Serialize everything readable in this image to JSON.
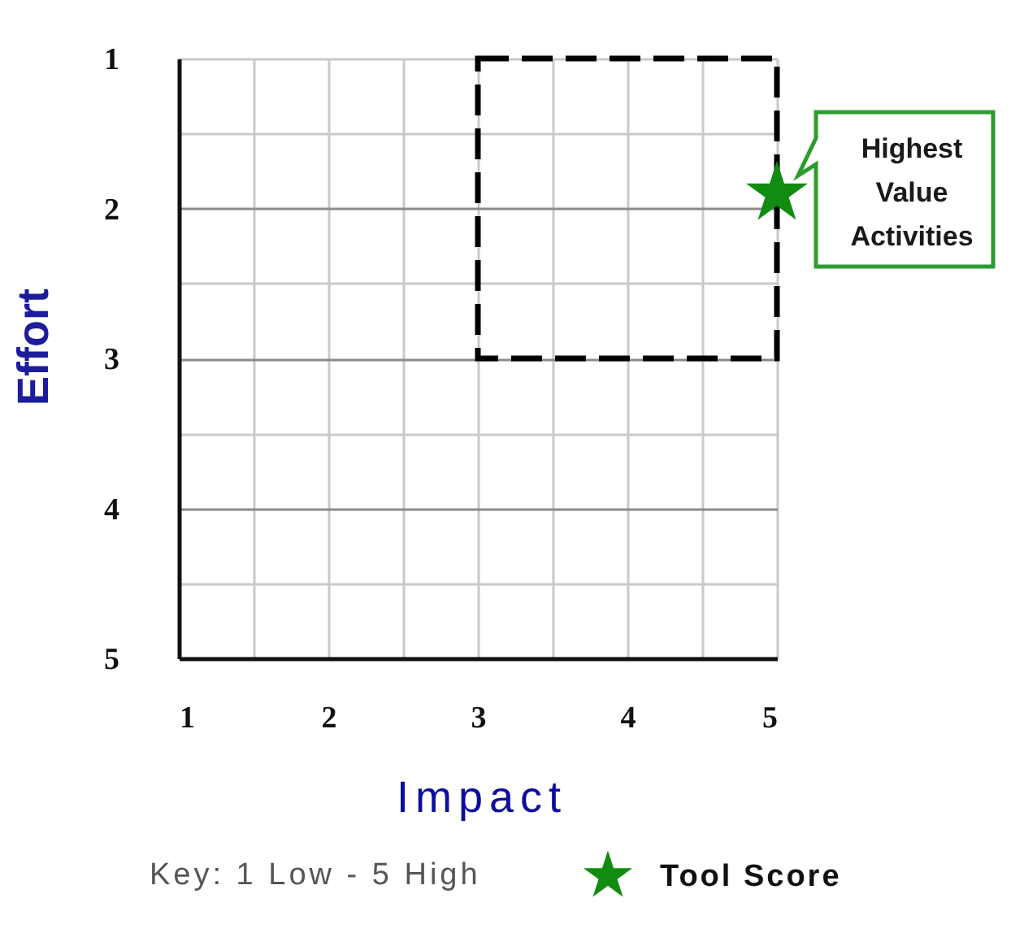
{
  "chart_data": {
    "type": "scatter",
    "xlabel": "Impact",
    "ylabel": "Effort",
    "xlim": [
      1,
      5
    ],
    "ylim": [
      5,
      1
    ],
    "xticks": [
      1,
      {
        "value": 1.5,
        "label": null
      },
      2,
      {
        "value": 2.5,
        "label": null
      },
      3,
      {
        "value": 3.5,
        "label": null
      },
      4,
      {
        "value": 4.5,
        "label": null
      },
      5
    ],
    "yticks": [
      1,
      {
        "value": 1.5,
        "label": null
      },
      2,
      {
        "value": 2.5,
        "label": null
      },
      3,
      {
        "value": 3.5,
        "label": null
      },
      4,
      {
        "value": 4.5,
        "label": null
      },
      5
    ],
    "grid": true,
    "legend": "bottom",
    "series": [
      {
        "name": "Tool Score",
        "color": "#118c11",
        "marker": "star",
        "x": [
          5
        ],
        "values": [
          1.9
        ]
      }
    ],
    "annotations": [
      {
        "text": "Highest Value Activities",
        "x": 5,
        "y": 1.9
      },
      "Key: 1 Low - 5 High"
    ]
  }
}
